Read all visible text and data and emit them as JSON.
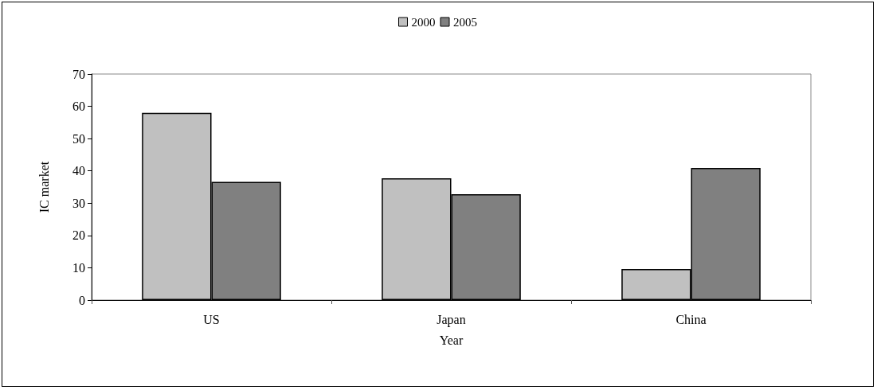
{
  "chart_data": {
    "type": "bar",
    "xlabel": "Year",
    "ylabel": "IC market",
    "categories": [
      "US",
      "Japan",
      "China"
    ],
    "series": [
      {
        "name": "2000",
        "color": "#c0c0c0",
        "values": [
          58,
          37.7,
          9.6
        ]
      },
      {
        "name": "2005",
        "color": "#808080",
        "values": [
          36.6,
          32.8,
          40.9
        ]
      }
    ],
    "ylim": [
      0,
      70
    ],
    "yticks": [
      0,
      10,
      20,
      30,
      40,
      50,
      60,
      70
    ],
    "grid": false,
    "legend": "top"
  }
}
